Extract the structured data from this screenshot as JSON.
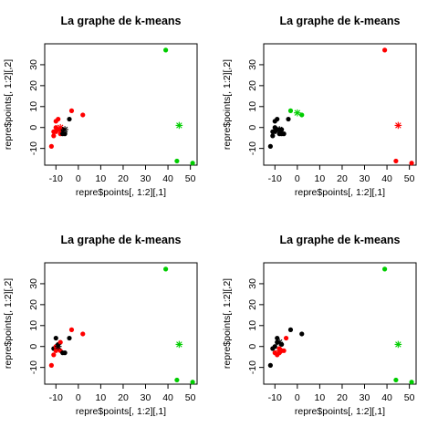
{
  "page_title": "La graphe de k-means",
  "chart_data": [
    {
      "type": "scatter",
      "title": "La graphe de k-means",
      "xlabel": "repre$points[, 1:2][,1]",
      "ylabel": "repre$points[, 1:2][,2]",
      "xlim": [
        -15,
        53
      ],
      "ylim": [
        -18,
        40
      ],
      "xticks": [
        -10,
        0,
        10,
        20,
        30,
        40,
        50
      ],
      "yticks": [
        -10,
        0,
        10,
        20,
        30
      ],
      "colors": {
        "black": "#000000",
        "red": "#ff0000",
        "green": "#00cd00"
      },
      "points": [
        {
          "x": -12,
          "y": -9,
          "c": "red"
        },
        {
          "x": -11,
          "y": -2,
          "c": "red"
        },
        {
          "x": -11,
          "y": -4,
          "c": "red"
        },
        {
          "x": -10,
          "y": 0,
          "c": "red"
        },
        {
          "x": -10,
          "y": -2,
          "c": "red"
        },
        {
          "x": -10,
          "y": 3,
          "c": "red"
        },
        {
          "x": -9,
          "y": -1,
          "c": "red"
        },
        {
          "x": -9,
          "y": 4,
          "c": "red"
        },
        {
          "x": -8,
          "y": -1,
          "c": "red"
        },
        {
          "x": -8,
          "y": -3,
          "c": "red"
        },
        {
          "x": -3,
          "y": 8,
          "c": "red"
        },
        {
          "x": 2,
          "y": 6,
          "c": "red"
        },
        {
          "x": -7,
          "y": -1,
          "c": "black"
        },
        {
          "x": -7,
          "y": -3,
          "c": "black"
        },
        {
          "x": -6,
          "y": -3,
          "c": "black"
        },
        {
          "x": -4,
          "y": 4,
          "c": "black"
        },
        {
          "x": 39,
          "y": 37,
          "c": "green"
        },
        {
          "x": 44,
          "y": -16,
          "c": "green"
        },
        {
          "x": 51,
          "y": -17,
          "c": "green"
        }
      ],
      "centers": [
        {
          "x": -8,
          "y": 0,
          "c": "red"
        },
        {
          "x": -6,
          "y": -1,
          "c": "black"
        },
        {
          "x": 45,
          "y": 1,
          "c": "green"
        }
      ]
    },
    {
      "type": "scatter",
      "title": "La graphe de k-means",
      "xlabel": "repre$points[, 1:2][,1]",
      "ylabel": "repre$points[, 1:2][,2]",
      "xlim": [
        -15,
        53
      ],
      "ylim": [
        -18,
        40
      ],
      "xticks": [
        -10,
        0,
        10,
        20,
        30,
        40,
        50
      ],
      "yticks": [
        -10,
        0,
        10,
        20,
        30
      ],
      "colors": {
        "black": "#000000",
        "red": "#ff0000",
        "green": "#00cd00"
      },
      "points": [
        {
          "x": -12,
          "y": -9,
          "c": "black"
        },
        {
          "x": -11,
          "y": -2,
          "c": "black"
        },
        {
          "x": -11,
          "y": -4,
          "c": "black"
        },
        {
          "x": -10,
          "y": 0,
          "c": "black"
        },
        {
          "x": -10,
          "y": -2,
          "c": "black"
        },
        {
          "x": -10,
          "y": 3,
          "c": "black"
        },
        {
          "x": -9,
          "y": -1,
          "c": "black"
        },
        {
          "x": -9,
          "y": 4,
          "c": "black"
        },
        {
          "x": -8,
          "y": -1,
          "c": "black"
        },
        {
          "x": -8,
          "y": -3,
          "c": "black"
        },
        {
          "x": -7,
          "y": -1,
          "c": "black"
        },
        {
          "x": -7,
          "y": -3,
          "c": "black"
        },
        {
          "x": -6,
          "y": -3,
          "c": "black"
        },
        {
          "x": -4,
          "y": 4,
          "c": "black"
        },
        {
          "x": -3,
          "y": 8,
          "c": "green"
        },
        {
          "x": 2,
          "y": 6,
          "c": "green"
        },
        {
          "x": 39,
          "y": 37,
          "c": "red"
        },
        {
          "x": 44,
          "y": -16,
          "c": "red"
        },
        {
          "x": 51,
          "y": -17,
          "c": "red"
        }
      ],
      "centers": [
        {
          "x": -8,
          "y": -1,
          "c": "black"
        },
        {
          "x": 0,
          "y": 7,
          "c": "green"
        },
        {
          "x": 45,
          "y": 1,
          "c": "red"
        }
      ]
    },
    {
      "type": "scatter",
      "title": "La graphe de k-means",
      "xlabel": "repre$points[, 1:2][,1]",
      "ylabel": "repre$points[, 1:2][,2]",
      "xlim": [
        -15,
        53
      ],
      "ylim": [
        -18,
        40
      ],
      "xticks": [
        -10,
        0,
        10,
        20,
        30,
        40,
        50
      ],
      "yticks": [
        -10,
        0,
        10,
        20,
        30
      ],
      "colors": {
        "black": "#000000",
        "red": "#ff0000",
        "green": "#00cd00"
      },
      "points": [
        {
          "x": -12,
          "y": -9,
          "c": "red"
        },
        {
          "x": -11,
          "y": -1,
          "c": "black"
        },
        {
          "x": -11,
          "y": -4,
          "c": "red"
        },
        {
          "x": -10,
          "y": -2,
          "c": "red"
        },
        {
          "x": -10,
          "y": 0,
          "c": "red"
        },
        {
          "x": -10,
          "y": 4,
          "c": "black"
        },
        {
          "x": -9,
          "y": -1,
          "c": "red"
        },
        {
          "x": -9,
          "y": 1,
          "c": "black"
        },
        {
          "x": -8,
          "y": 2,
          "c": "red"
        },
        {
          "x": -8,
          "y": -2,
          "c": "red"
        },
        {
          "x": -7,
          "y": -3,
          "c": "black"
        },
        {
          "x": -6,
          "y": -3,
          "c": "black"
        },
        {
          "x": -4,
          "y": 4,
          "c": "black"
        },
        {
          "x": -3,
          "y": 8,
          "c": "red"
        },
        {
          "x": 2,
          "y": 6,
          "c": "red"
        },
        {
          "x": 39,
          "y": 37,
          "c": "green"
        },
        {
          "x": 44,
          "y": -16,
          "c": "green"
        },
        {
          "x": 51,
          "y": -17,
          "c": "green"
        }
      ],
      "centers": [
        {
          "x": -9,
          "y": 0,
          "c": "black"
        },
        {
          "x": 45,
          "y": 1,
          "c": "green"
        }
      ]
    },
    {
      "type": "scatter",
      "title": "La graphe de k-means",
      "xlabel": "repre$points[, 1:2][,1]",
      "ylabel": "repre$points[, 1:2][,2]",
      "xlim": [
        -15,
        53
      ],
      "ylim": [
        -18,
        40
      ],
      "xticks": [
        -10,
        0,
        10,
        20,
        30,
        40,
        50
      ],
      "yticks": [
        -10,
        0,
        10,
        20,
        30
      ],
      "colors": {
        "black": "#000000",
        "red": "#ff0000",
        "green": "#00cd00"
      },
      "points": [
        {
          "x": -12,
          "y": -9,
          "c": "black"
        },
        {
          "x": -11,
          "y": -1,
          "c": "black"
        },
        {
          "x": -10,
          "y": 0,
          "c": "black"
        },
        {
          "x": -10,
          "y": -3,
          "c": "red"
        },
        {
          "x": -9,
          "y": 2,
          "c": "black"
        },
        {
          "x": -9,
          "y": 4,
          "c": "black"
        },
        {
          "x": -9,
          "y": -4,
          "c": "red"
        },
        {
          "x": -8,
          "y": -1,
          "c": "red"
        },
        {
          "x": -8,
          "y": -3,
          "c": "red"
        },
        {
          "x": -7,
          "y": 1,
          "c": "black"
        },
        {
          "x": -7,
          "y": -2,
          "c": "red"
        },
        {
          "x": -6,
          "y": -2,
          "c": "red"
        },
        {
          "x": -5,
          "y": 4,
          "c": "red"
        },
        {
          "x": -3,
          "y": 8,
          "c": "black"
        },
        {
          "x": 2,
          "y": 6,
          "c": "black"
        },
        {
          "x": 39,
          "y": 37,
          "c": "green"
        },
        {
          "x": 44,
          "y": -16,
          "c": "green"
        },
        {
          "x": 51,
          "y": -17,
          "c": "green"
        }
      ],
      "centers": [
        {
          "x": -8,
          "y": 2,
          "c": "black"
        },
        {
          "x": -8,
          "y": -2,
          "c": "red"
        },
        {
          "x": 45,
          "y": 1,
          "c": "green"
        }
      ]
    }
  ]
}
